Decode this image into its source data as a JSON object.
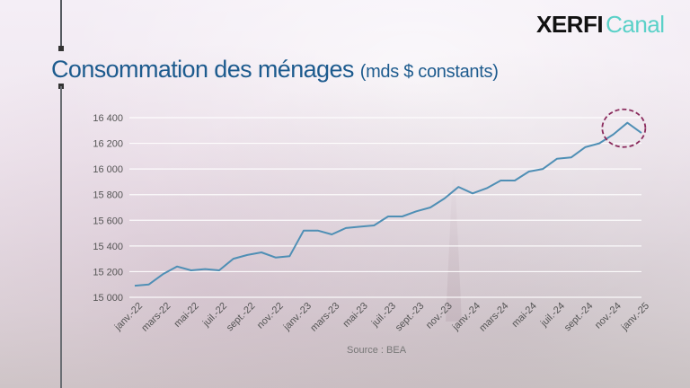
{
  "brand": {
    "part1": "XERFI",
    "part2": "Canal"
  },
  "title": {
    "main": "Consommation des ménages",
    "unit": "(mds $ constants)"
  },
  "source": "Source : BEA",
  "colors": {
    "line": "#4f8fb5",
    "title": "#1d5b8e",
    "highlight": "#8a2a5c",
    "grid": "#ffffff"
  },
  "chart_data": {
    "type": "line",
    "title": "Consommation des ménages (mds $ constants)",
    "xlabel": "",
    "ylabel": "",
    "ylim": [
      15000,
      16400
    ],
    "y_ticks": [
      15000,
      15200,
      15400,
      15600,
      15800,
      16000,
      16200,
      16400
    ],
    "y_tick_labels": [
      "15 000",
      "15 200",
      "15 400",
      "15 600",
      "15 800",
      "16 000",
      "16 200",
      "16 400"
    ],
    "x_tick_labels": [
      "janv.-22",
      "mars-22",
      "mai-22",
      "juil.-22",
      "sept.-22",
      "nov.-22",
      "janv.-23",
      "mars-23",
      "mai-23",
      "juil.-23",
      "sept.-23",
      "nov.-23",
      "janv.-24",
      "mars-24",
      "mai-24",
      "juil.-24",
      "sept.-24",
      "nov.-24",
      "janv.-25"
    ],
    "grid": true,
    "legend": "none",
    "x": [
      "2022-01",
      "2022-02",
      "2022-03",
      "2022-04",
      "2022-05",
      "2022-06",
      "2022-07",
      "2022-08",
      "2022-09",
      "2022-10",
      "2022-11",
      "2022-12",
      "2023-01",
      "2023-02",
      "2023-03",
      "2023-04",
      "2023-05",
      "2023-06",
      "2023-07",
      "2023-08",
      "2023-09",
      "2023-10",
      "2023-11",
      "2023-12",
      "2024-01",
      "2024-02",
      "2024-03",
      "2024-04",
      "2024-05",
      "2024-06",
      "2024-07",
      "2024-08",
      "2024-09",
      "2024-10",
      "2024-11",
      "2024-12",
      "2025-01"
    ],
    "series": [
      {
        "values": [
          15090,
          15100,
          15180,
          15240,
          15210,
          15220,
          15210,
          15300,
          15330,
          15350,
          15310,
          15320,
          15520,
          15520,
          15490,
          15540,
          15550,
          15560,
          15630,
          15630,
          15670,
          15700,
          15770,
          15860,
          15810,
          15850,
          15910,
          15910,
          15980,
          16000,
          16080,
          16090,
          16170,
          16200,
          16270,
          16360,
          16280
        ]
      }
    ],
    "highlight": {
      "x": "2024-12",
      "shape": "dashed-ellipse"
    }
  }
}
